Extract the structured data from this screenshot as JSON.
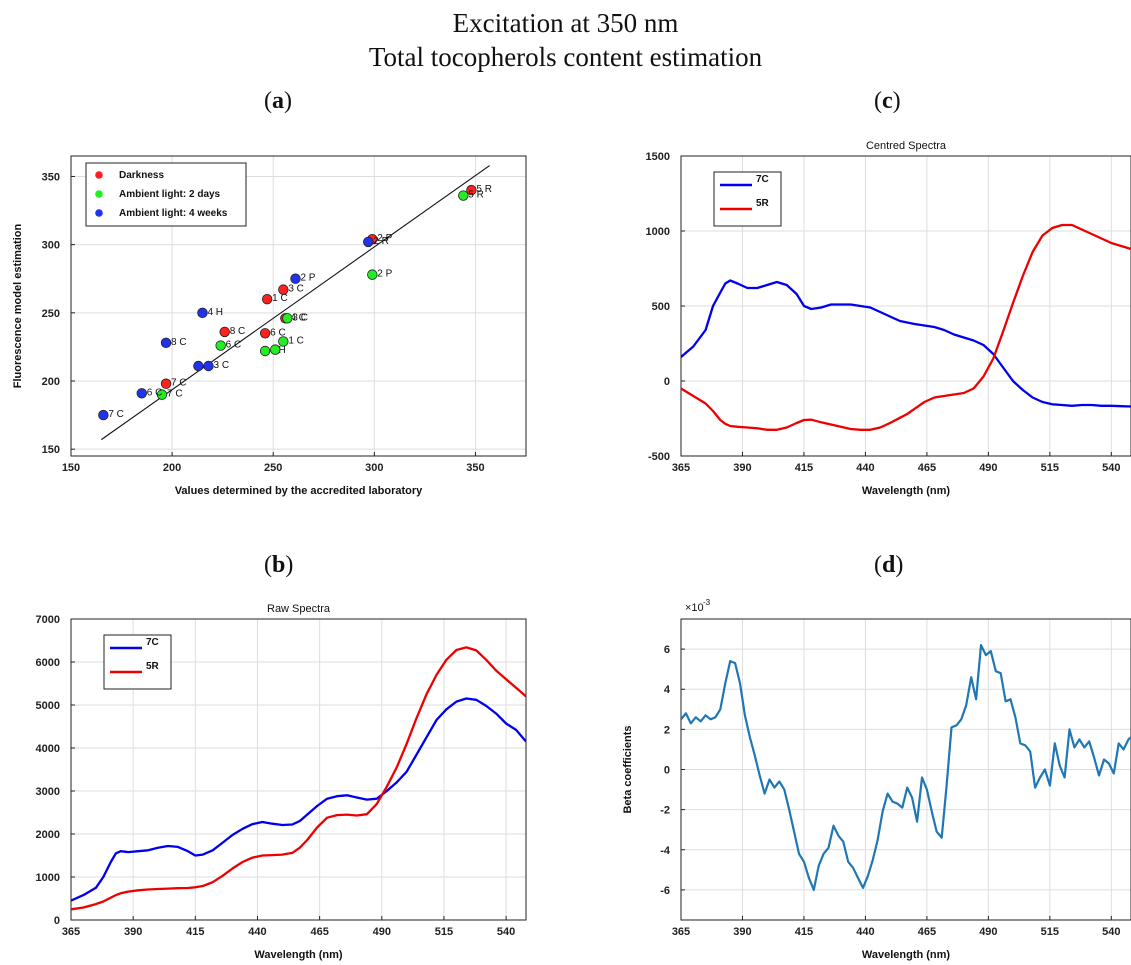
{
  "figure": {
    "title_line1": "Excitation at 350 nm",
    "title_line2": "Total tocopherols content estimation",
    "colors": {
      "darkness": "#ff2020",
      "ambient2d": "#22ee22",
      "ambient4w": "#2233ee",
      "blue": "#0000ee",
      "red": "#ee0000",
      "beta": "#1f77b4"
    }
  },
  "chart_data": [
    {
      "id": "a",
      "panel_label": "a",
      "type": "scatter",
      "title": "",
      "xlabel": "Values determined by the accredited laboratory",
      "ylabel": "Fluorescence model estimation",
      "xlim": [
        150,
        375
      ],
      "ylim": [
        145,
        365
      ],
      "xticks": [
        150,
        200,
        250,
        300,
        350
      ],
      "yticks": [
        150,
        200,
        250,
        300,
        350
      ],
      "grid": true,
      "legend_position": "top-left",
      "fit_line": {
        "x": [
          165,
          357
        ],
        "y": [
          157,
          358
        ]
      },
      "series": [
        {
          "name": "Darkness",
          "color_key": "darkness",
          "points": [
            {
              "x": 197,
              "y": 198,
              "label": "7 C"
            },
            {
              "x": 246,
              "y": 235,
              "label": "6 C"
            },
            {
              "x": 226,
              "y": 236,
              "label": "8 C"
            },
            {
              "x": 247,
              "y": 260,
              "label": "1 C"
            },
            {
              "x": 255,
              "y": 267,
              "label": "3 C"
            },
            {
              "x": 256,
              "y": 246,
              "label": "4 C"
            },
            {
              "x": 299,
              "y": 304,
              "label": "2 P"
            },
            {
              "x": 348,
              "y": 340,
              "label": "5 R"
            }
          ]
        },
        {
          "name": "Ambient light: 2 days",
          "color_key": "ambient2d",
          "points": [
            {
              "x": 195,
              "y": 190,
              "label": "7 C"
            },
            {
              "x": 224,
              "y": 226,
              "label": "6 C"
            },
            {
              "x": 246,
              "y": 222,
              "label": "4 H"
            },
            {
              "x": 251,
              "y": 223,
              "label": ""
            },
            {
              "x": 255,
              "y": 229,
              "label": "1 C"
            },
            {
              "x": 257,
              "y": 246,
              "label": "3 C"
            },
            {
              "x": 299,
              "y": 278,
              "label": "2 P"
            },
            {
              "x": 344,
              "y": 336,
              "label": "5 R"
            }
          ]
        },
        {
          "name": "Ambient light: 4 weeks",
          "color_key": "ambient4w",
          "points": [
            {
              "x": 166,
              "y": 175,
              "label": "7 C"
            },
            {
              "x": 185,
              "y": 191,
              "label": "6 C"
            },
            {
              "x": 213,
              "y": 211,
              "label": ""
            },
            {
              "x": 218,
              "y": 211,
              "label": "3 C"
            },
            {
              "x": 197,
              "y": 228,
              "label": "8 C"
            },
            {
              "x": 215,
              "y": 250,
              "label": "4 H"
            },
            {
              "x": 261,
              "y": 275,
              "label": "2 P"
            },
            {
              "x": 297,
              "y": 302,
              "label": "2 R"
            }
          ]
        }
      ]
    },
    {
      "id": "b",
      "panel_label": "b",
      "type": "line",
      "title": "Raw Spectra",
      "xlabel": "Wavelength (nm)",
      "ylabel": "",
      "xlim": [
        365,
        548
      ],
      "ylim": [
        0,
        7000
      ],
      "xticks": [
        365,
        390,
        415,
        440,
        465,
        490,
        515,
        540
      ],
      "yticks": [
        0,
        1000,
        2000,
        3000,
        4000,
        5000,
        6000,
        7000
      ],
      "grid": true,
      "legend_position": "top-left",
      "series": [
        {
          "name": "7C",
          "color_key": "blue",
          "x": [
            365,
            370,
            375,
            378,
            381,
            383,
            385,
            388,
            392,
            396,
            400,
            404,
            408,
            412,
            415,
            418,
            422,
            426,
            430,
            434,
            438,
            442,
            446,
            450,
            454,
            457,
            460,
            464,
            468,
            472,
            476,
            480,
            484,
            488,
            492,
            496,
            500,
            504,
            508,
            512,
            516,
            520,
            524,
            528,
            532,
            536,
            540,
            544,
            548
          ],
          "y": [
            450,
            580,
            750,
            1000,
            1350,
            1550,
            1600,
            1580,
            1600,
            1620,
            1680,
            1720,
            1700,
            1600,
            1500,
            1520,
            1620,
            1800,
            1980,
            2120,
            2230,
            2280,
            2240,
            2210,
            2220,
            2300,
            2450,
            2650,
            2820,
            2880,
            2900,
            2850,
            2800,
            2820,
            3000,
            3200,
            3450,
            3850,
            4250,
            4650,
            4900,
            5080,
            5150,
            5120,
            4980,
            4800,
            4570,
            4420,
            4150
          ]
        },
        {
          "name": "5R",
          "color_key": "red",
          "x": [
            365,
            370,
            375,
            378,
            381,
            383,
            385,
            388,
            392,
            396,
            400,
            404,
            408,
            412,
            415,
            418,
            422,
            426,
            430,
            434,
            438,
            442,
            446,
            450,
            454,
            457,
            460,
            464,
            468,
            472,
            476,
            480,
            484,
            488,
            492,
            496,
            500,
            504,
            508,
            512,
            516,
            520,
            524,
            528,
            532,
            536,
            540,
            544,
            548
          ],
          "y": [
            250,
            290,
            370,
            430,
            520,
            580,
            620,
            660,
            690,
            710,
            720,
            730,
            740,
            745,
            760,
            790,
            880,
            1030,
            1200,
            1350,
            1450,
            1500,
            1510,
            1520,
            1560,
            1680,
            1860,
            2150,
            2380,
            2440,
            2450,
            2430,
            2460,
            2700,
            3100,
            3550,
            4100,
            4700,
            5250,
            5700,
            6050,
            6280,
            6340,
            6270,
            6050,
            5800,
            5600,
            5400,
            5200
          ]
        }
      ]
    },
    {
      "id": "c",
      "panel_label": "c",
      "type": "line",
      "title": "Centred Spectra",
      "xlabel": "Wavelength (nm)",
      "ylabel": "",
      "xlim": [
        365,
        548
      ],
      "ylim": [
        -500,
        1500
      ],
      "xticks": [
        365,
        390,
        415,
        440,
        465,
        490,
        515,
        540
      ],
      "yticks": [
        -500,
        0,
        500,
        1000,
        1500
      ],
      "grid": true,
      "legend_position": "top-left",
      "series": [
        {
          "name": "7C",
          "color_key": "blue",
          "x": [
            365,
            370,
            375,
            378,
            381,
            383,
            385,
            388,
            392,
            396,
            400,
            404,
            408,
            412,
            415,
            418,
            422,
            426,
            430,
            434,
            438,
            442,
            446,
            450,
            454,
            457,
            460,
            464,
            468,
            472,
            476,
            480,
            484,
            488,
            492,
            496,
            500,
            504,
            508,
            512,
            516,
            520,
            524,
            528,
            532,
            536,
            540,
            544,
            548
          ],
          "y": [
            160,
            230,
            340,
            500,
            590,
            650,
            670,
            650,
            620,
            620,
            640,
            660,
            640,
            580,
            500,
            480,
            490,
            510,
            510,
            510,
            500,
            490,
            460,
            430,
            400,
            390,
            380,
            370,
            360,
            340,
            310,
            290,
            270,
            240,
            180,
            90,
            0,
            -60,
            -110,
            -140,
            -155,
            -160,
            -165,
            -160,
            -160,
            -165,
            -165,
            -168,
            -170
          ]
        },
        {
          "name": "5R",
          "color_key": "red",
          "x": [
            365,
            370,
            375,
            378,
            381,
            383,
            385,
            388,
            392,
            396,
            400,
            404,
            408,
            412,
            415,
            418,
            422,
            426,
            430,
            434,
            438,
            442,
            446,
            450,
            454,
            457,
            460,
            464,
            468,
            472,
            476,
            480,
            484,
            488,
            492,
            496,
            500,
            504,
            508,
            512,
            516,
            520,
            524,
            528,
            532,
            536,
            540,
            544,
            548
          ],
          "y": [
            -50,
            -100,
            -150,
            -200,
            -260,
            -285,
            -300,
            -305,
            -310,
            -315,
            -325,
            -325,
            -310,
            -280,
            -260,
            -258,
            -275,
            -290,
            -305,
            -320,
            -325,
            -325,
            -310,
            -280,
            -245,
            -220,
            -185,
            -140,
            -110,
            -100,
            -90,
            -80,
            -50,
            30,
            150,
            330,
            520,
            700,
            860,
            970,
            1020,
            1040,
            1040,
            1010,
            980,
            950,
            920,
            900,
            880
          ]
        }
      ]
    },
    {
      "id": "d",
      "panel_label": "d",
      "type": "line",
      "title": "",
      "xlabel": "Wavelength (nm)",
      "ylabel": "Beta coefficients",
      "exponent_label": "×10",
      "exponent_power": "-3",
      "xlim": [
        365,
        548
      ],
      "ylim": [
        -7.5,
        7.5
      ],
      "xticks": [
        365,
        390,
        415,
        440,
        465,
        490,
        515,
        540
      ],
      "yticks": [
        -6,
        -4,
        -2,
        0,
        2,
        4,
        6
      ],
      "grid": true,
      "series": [
        {
          "name": "",
          "color_key": "beta",
          "x": [
            365,
            367,
            369,
            371,
            373,
            375,
            377,
            379,
            381,
            383,
            385,
            387,
            389,
            391,
            393,
            395,
            397,
            399,
            401,
            403,
            405,
            407,
            409,
            411,
            413,
            415,
            417,
            419,
            421,
            423,
            425,
            427,
            429,
            431,
            433,
            435,
            437,
            439,
            441,
            443,
            445,
            447,
            449,
            451,
            453,
            455,
            457,
            459,
            461,
            463,
            465,
            467,
            469,
            471,
            473,
            475,
            477,
            479,
            481,
            483,
            485,
            487,
            489,
            491,
            493,
            495,
            497,
            499,
            501,
            503,
            505,
            507,
            509,
            511,
            513,
            515,
            517,
            519,
            521,
            523,
            525,
            527,
            529,
            531,
            533,
            535,
            537,
            539,
            541,
            543,
            545,
            547,
            548
          ],
          "y": [
            2.5,
            2.8,
            2.3,
            2.6,
            2.4,
            2.7,
            2.5,
            2.6,
            3.0,
            4.3,
            5.4,
            5.3,
            4.3,
            2.7,
            1.6,
            0.7,
            -0.3,
            -1.2,
            -0.5,
            -0.9,
            -0.6,
            -1.0,
            -2.0,
            -3.1,
            -4.2,
            -4.6,
            -5.4,
            -6.0,
            -4.8,
            -4.2,
            -3.9,
            -2.8,
            -3.3,
            -3.6,
            -4.6,
            -4.9,
            -5.4,
            -5.9,
            -5.3,
            -4.5,
            -3.5,
            -2.1,
            -1.2,
            -1.6,
            -1.7,
            -1.9,
            -0.9,
            -1.4,
            -2.6,
            -0.4,
            -1.0,
            -2.1,
            -3.1,
            -3.4,
            -0.8,
            2.1,
            2.2,
            2.5,
            3.2,
            4.6,
            3.5,
            6.2,
            5.7,
            5.9,
            4.9,
            4.8,
            3.4,
            3.5,
            2.6,
            1.3,
            1.2,
            0.9,
            -0.9,
            -0.4,
            0.0,
            -0.8,
            1.3,
            0.2,
            -0.4,
            2.0,
            1.1,
            1.5,
            1.1,
            1.4,
            0.6,
            -0.3,
            0.5,
            0.3,
            -0.2,
            1.3,
            1.0,
            1.5,
            1.6
          ]
        }
      ]
    }
  ]
}
